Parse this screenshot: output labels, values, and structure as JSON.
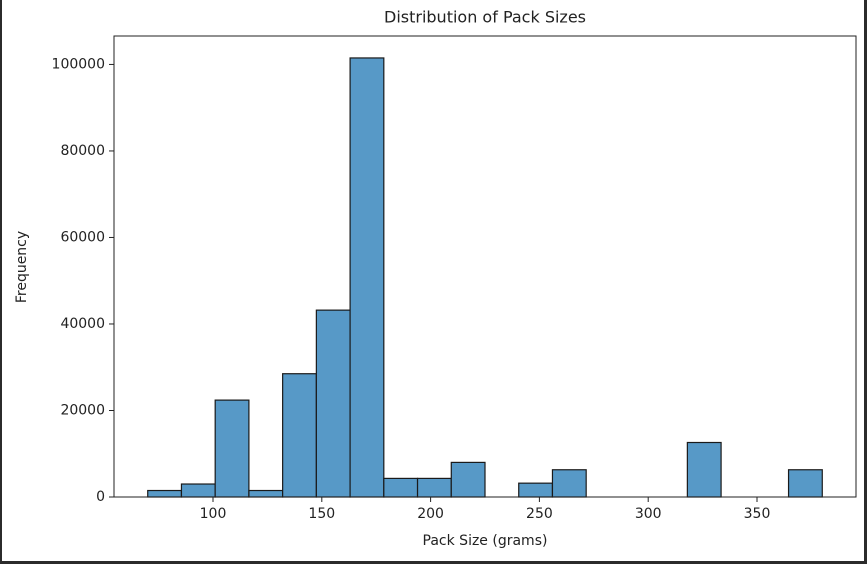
{
  "chart_data": {
    "type": "histogram",
    "title": "Distribution of Pack Sizes",
    "x_label": "Pack Size (grams)",
    "y_label": "Frequency",
    "bins": [
      70,
      85.5,
      101,
      116.5,
      132,
      147.5,
      163,
      178.5,
      194,
      209.5,
      225,
      240.5,
      256,
      271.5,
      287,
      302.5,
      318,
      333.5,
      349,
      364.5,
      380
    ],
    "values": [
      1500,
      3000,
      22400,
      1500,
      28500,
      43200,
      101500,
      4300,
      4300,
      8000,
      0,
      3200,
      6300,
      0,
      0,
      0,
      12600,
      0,
      0,
      6300
    ],
    "color": "#5799c7",
    "xlim": [
      54.5,
      395.5
    ],
    "xticks": [
      100,
      150,
      200,
      250,
      300,
      350
    ],
    "ylim": [
      0,
      106575
    ],
    "yticks": [
      0,
      20000,
      40000,
      60000,
      80000,
      100000
    ]
  }
}
